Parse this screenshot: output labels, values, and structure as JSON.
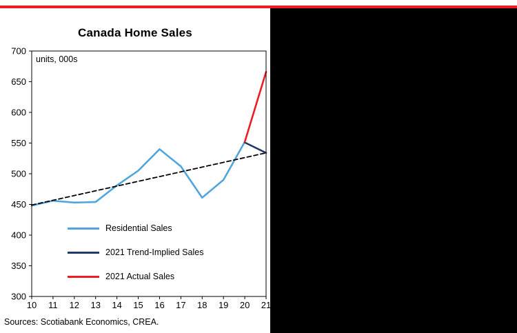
{
  "page": {
    "source_note": "Sources: Scotiabank Economics, CREA."
  },
  "accent": {
    "top_bar_color": "#ED1C24"
  },
  "chart_data": {
    "type": "line",
    "title": "Canada Home Sales",
    "units_label": "units, 000s",
    "xlabel": "",
    "ylabel": "units, 000s",
    "ylim": [
      300,
      700
    ],
    "ytick_step": 50,
    "xticks": [
      10,
      11,
      12,
      13,
      14,
      15,
      16,
      17,
      18,
      19,
      20,
      21
    ],
    "grid": false,
    "legend_position": "inside-lower-left",
    "series": [
      {
        "name": "Residential Sales",
        "color": "#4FA5DC",
        "dash": null,
        "width": 2.6,
        "x": [
          10,
          11,
          12,
          13,
          14,
          15,
          16,
          17,
          18,
          19,
          20
        ],
        "values": [
          448,
          456,
          453,
          454,
          481,
          505,
          540,
          512,
          461,
          490,
          552
        ]
      },
      {
        "name": "Linear Trend (dashed)",
        "color": "#000000",
        "dash": "6,4",
        "width": 1.8,
        "x": [
          10,
          21
        ],
        "values": [
          449,
          534
        ]
      },
      {
        "name": "2021 Trend-Implied Sales",
        "color": "#1F3864",
        "dash": null,
        "width": 2.6,
        "x": [
          20,
          21
        ],
        "values": [
          551,
          534
        ]
      },
      {
        "name": "2021 Actual Sales",
        "color": "#ED1C24",
        "dash": null,
        "width": 2.6,
        "x": [
          20,
          21
        ],
        "values": [
          552,
          666
        ]
      }
    ],
    "legend": [
      {
        "label": "Residential Sales",
        "color": "#4FA5DC"
      },
      {
        "label": "2021 Trend-Implied Sales",
        "color": "#1F3864"
      },
      {
        "label": "2021 Actual Sales",
        "color": "#ED1C24"
      }
    ]
  }
}
